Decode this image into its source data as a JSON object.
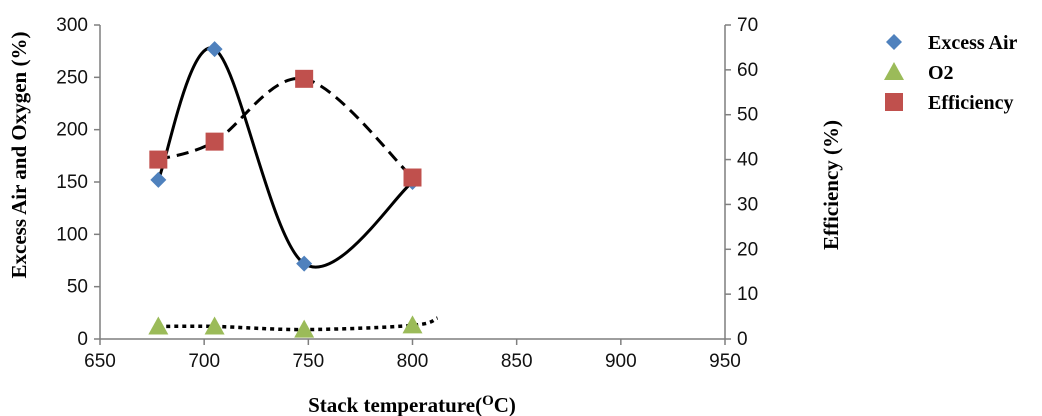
{
  "chart_data": {
    "type": "scatter",
    "xlabel": "Stack temperature(OC)",
    "xlabel_parts": {
      "main": "Stack temperature(",
      "sup": "O",
      "tail": "C)"
    },
    "ylabel": "Excess Air and Oxygen  (%)",
    "y2label": "Efficiency (%)",
    "xlim": [
      650,
      950
    ],
    "ylim": [
      0,
      300
    ],
    "y2lim": [
      0,
      70
    ],
    "x_ticks": [
      650,
      700,
      750,
      800,
      850,
      900,
      950
    ],
    "y_ticks": [
      0,
      50,
      100,
      150,
      200,
      250,
      300
    ],
    "y2_ticks": [
      0,
      10,
      20,
      30,
      40,
      50,
      60,
      70
    ],
    "grid": false,
    "legend_position": "right",
    "series": [
      {
        "name": "Excess Air",
        "axis": "left",
        "marker": "diamond",
        "color": "#4F81BD",
        "trend": "solid",
        "points": [
          [
            678,
            152
          ],
          [
            705,
            277
          ],
          [
            748,
            72
          ],
          [
            800,
            150
          ]
        ]
      },
      {
        "name": "O2",
        "axis": "left",
        "marker": "triangle",
        "color": "#9BBB59",
        "trend": "dotted",
        "points": [
          [
            678,
            12
          ],
          [
            705,
            12
          ],
          [
            748,
            9
          ],
          [
            800,
            13
          ]
        ]
      },
      {
        "name": "Efficiency",
        "axis": "right",
        "marker": "square",
        "color": "#C0504D",
        "trend": "dashed",
        "points": [
          [
            678,
            40
          ],
          [
            705,
            44
          ],
          [
            748,
            58
          ],
          [
            800,
            36
          ]
        ]
      }
    ]
  }
}
